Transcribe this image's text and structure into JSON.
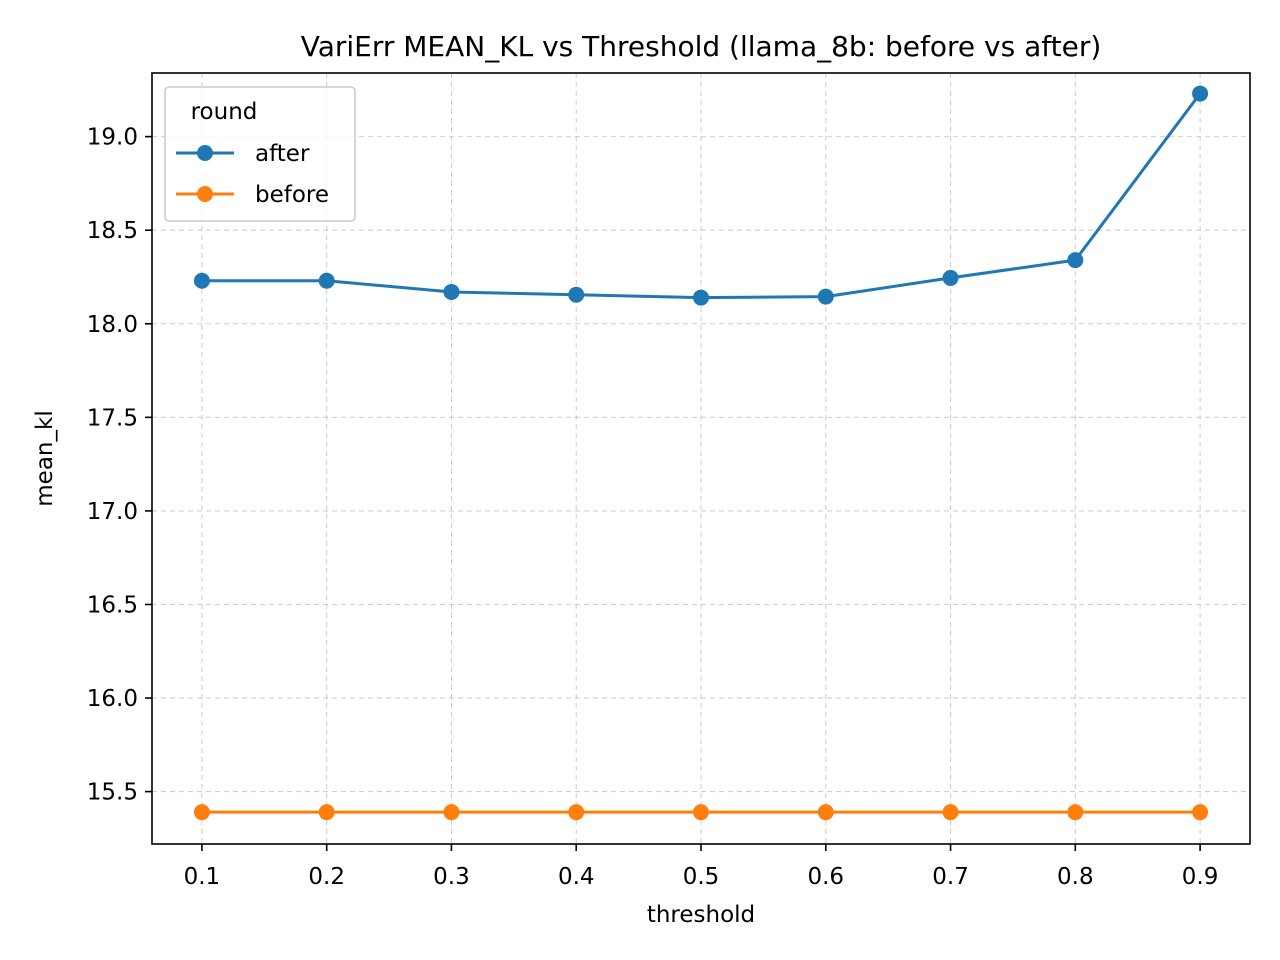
{
  "chart_data": {
    "type": "line",
    "title": "VariErr MEAN_KL vs Threshold (llama_8b: before vs after)",
    "xlabel": "threshold",
    "ylabel": "mean_kl",
    "x": [
      0.1,
      0.2,
      0.3,
      0.4,
      0.5,
      0.6,
      0.7,
      0.8,
      0.9
    ],
    "xticks": [
      "0.1",
      "0.2",
      "0.3",
      "0.4",
      "0.5",
      "0.6",
      "0.7",
      "0.8",
      "0.9"
    ],
    "yticks": [
      "15.5",
      "16.0",
      "16.5",
      "17.0",
      "17.5",
      "18.0",
      "18.5",
      "19.0"
    ],
    "xlim": [
      0.06,
      0.94
    ],
    "ylim": [
      15.22,
      19.34
    ],
    "grid": true,
    "legend": {
      "title": "round",
      "placement": "upper-left"
    },
    "series": [
      {
        "name": "after",
        "color": "#1f77b4",
        "marker": "circle",
        "values": [
          18.23,
          18.23,
          18.17,
          18.155,
          18.14,
          18.145,
          18.245,
          18.34,
          19.23
        ]
      },
      {
        "name": "before",
        "color": "#ff7f0e",
        "marker": "circle",
        "values": [
          15.39,
          15.39,
          15.39,
          15.39,
          15.39,
          15.39,
          15.39,
          15.39,
          15.39
        ]
      }
    ]
  }
}
